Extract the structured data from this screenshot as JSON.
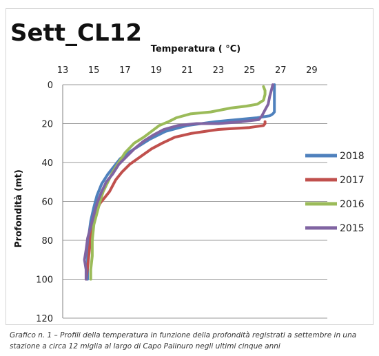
{
  "chart_data": {
    "type": "line",
    "title": "Sett_CL12",
    "xlabel": "Temperatura ( °C)",
    "ylabel": "Profondità (mt)",
    "x_axis_position": "top",
    "y_axis_inverted": true,
    "xlim": [
      13,
      30
    ],
    "ylim": [
      0,
      120
    ],
    "xticks": [
      13,
      15,
      17,
      19,
      21,
      23,
      25,
      27,
      29
    ],
    "yticks": [
      0,
      20,
      40,
      60,
      80,
      100,
      120
    ],
    "grid": "horizontal",
    "legend_position": "right",
    "series": [
      {
        "name": "2018",
        "color": "#4f81bd",
        "x": [
          26.6,
          26.6,
          26.5,
          26.3,
          25.5,
          24.2,
          22.8,
          21.0,
          19.6,
          18.6,
          17.8,
          17.2,
          16.7,
          16.3,
          15.9,
          15.5,
          15.2,
          15.0,
          14.8,
          14.7,
          14.65,
          14.6,
          14.6,
          14.6,
          14.6
        ],
        "y": [
          0,
          14,
          15,
          16,
          17,
          18,
          19,
          21,
          24,
          28,
          32,
          35,
          38,
          42,
          46,
          51,
          57,
          63,
          70,
          76,
          82,
          88,
          94,
          98,
          100
        ]
      },
      {
        "name": "2017",
        "color": "#c0504d",
        "x": [
          26.0,
          26.0,
          25.9,
          25.0,
          23.0,
          21.3,
          20.2,
          19.4,
          18.7,
          18.0,
          17.3,
          16.8,
          16.4,
          16.0,
          15.7,
          15.4,
          15.1,
          14.9,
          14.8,
          14.7,
          14.6,
          14.5
        ],
        "y": [
          19,
          20,
          21,
          22,
          23,
          25,
          27,
          30,
          33,
          37,
          41,
          45,
          49,
          55,
          58,
          61,
          66,
          72,
          78,
          86,
          94,
          100
        ]
      },
      {
        "name": "2016",
        "color": "#9bbb59",
        "x": [
          25.9,
          26.0,
          26.0,
          25.9,
          25.5,
          24.8,
          23.8,
          22.5,
          21.2,
          20.3,
          19.8,
          19.2,
          18.7,
          18.2,
          17.6,
          17.0,
          16.6,
          16.2,
          15.9,
          15.6,
          15.4,
          15.2,
          15.0,
          14.9,
          14.9,
          14.8,
          14.8
        ],
        "y": [
          1,
          3,
          5,
          8,
          10,
          11,
          12,
          14,
          15,
          17,
          19,
          21,
          24,
          27,
          30,
          35,
          40,
          45,
          50,
          55,
          60,
          66,
          72,
          80,
          88,
          95,
          100
        ]
      },
      {
        "name": "2015",
        "color": "#8064a2",
        "x": [
          26.5,
          26.4,
          26.3,
          26.2,
          26.0,
          25.8,
          25.6,
          24.5,
          23.0,
          21.6,
          20.4,
          19.5,
          18.8,
          18.2,
          17.6,
          17.1,
          16.6,
          16.2,
          15.8,
          15.5,
          15.2,
          15.0,
          14.8,
          14.6,
          14.5,
          14.4,
          14.5,
          14.5
        ],
        "y": [
          0,
          3,
          6,
          10,
          13,
          16,
          18,
          19,
          20,
          20,
          21,
          23,
          26,
          29,
          33,
          37,
          41,
          46,
          50,
          55,
          61,
          67,
          73,
          79,
          85,
          90,
          95,
          100
        ]
      }
    ]
  },
  "caption": {
    "line1": "Grafico n. 1 – Profili della temperatura in funzione della profondità registrati a settembre in una",
    "line2": "stazione a circa 12 miglia al largo di Capo Palinuro negli ultimi cinque anni"
  }
}
